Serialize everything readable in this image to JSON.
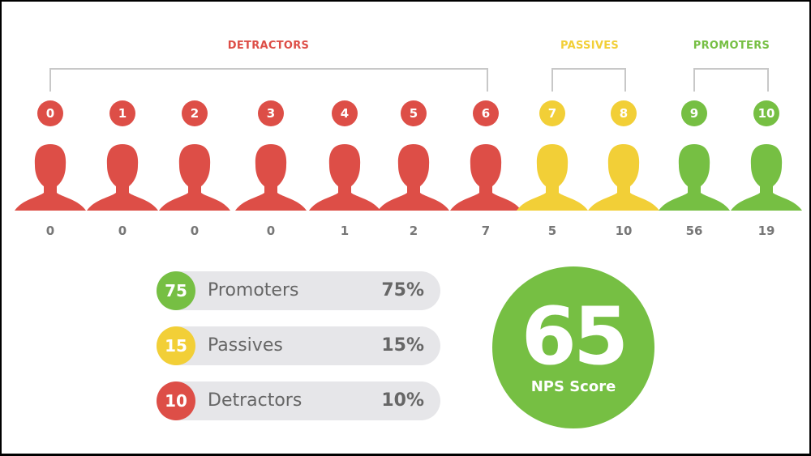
{
  "colors": {
    "detractor": "#dd4e47",
    "passive": "#f2cf37",
    "promoter": "#76bf43"
  },
  "groups": [
    {
      "label": "DETRACTORS",
      "type": "detractor"
    },
    {
      "label": "PASSIVES",
      "type": "passive"
    },
    {
      "label": "PROMOTERS",
      "type": "promoter"
    }
  ],
  "chart_data": {
    "type": "bar",
    "categories": [
      "0",
      "1",
      "2",
      "3",
      "4",
      "5",
      "6",
      "7",
      "8",
      "9",
      "10"
    ],
    "values": [
      0,
      0,
      0,
      0,
      1,
      2,
      7,
      5,
      10,
      56,
      19
    ],
    "types": [
      "detractor",
      "detractor",
      "detractor",
      "detractor",
      "detractor",
      "detractor",
      "detractor",
      "passive",
      "passive",
      "promoter",
      "promoter"
    ]
  },
  "summary": [
    {
      "count": "75",
      "label": "Promoters",
      "percent": "75%",
      "type": "promoter"
    },
    {
      "count": "15",
      "label": "Passives",
      "percent": "15%",
      "type": "passive"
    },
    {
      "count": "10",
      "label": "Detractors",
      "percent": "10%",
      "type": "detractor"
    }
  ],
  "nps": {
    "value": "65",
    "label": "NPS Score"
  }
}
